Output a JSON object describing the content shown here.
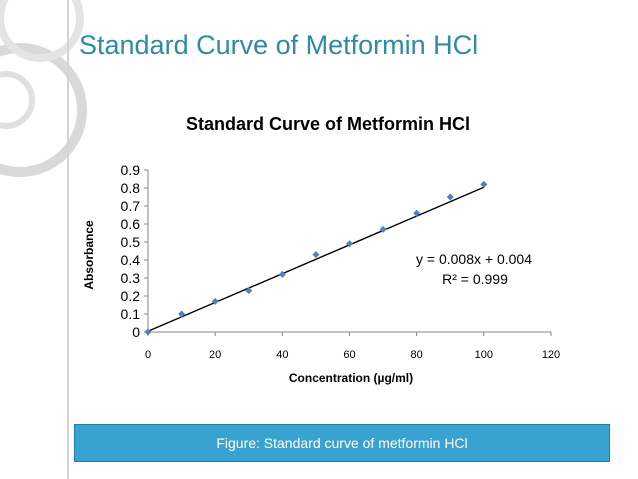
{
  "slide": {
    "title": "Standard Curve of Metformin HCl",
    "caption": "Figure: Standard curve of metformin HCl"
  },
  "colors": {
    "title": "#2f8aa8",
    "caption_bg": "#38a2d0",
    "marker": "#4f81bd",
    "trendline": "#000000"
  },
  "chart_data": {
    "type": "scatter",
    "title": "Standard Curve of Metformin HCl",
    "xlabel": "Concentration (µg/ml)",
    "ylabel": "Absorbance",
    "xlim": [
      0,
      120
    ],
    "ylim": [
      0,
      0.9
    ],
    "x_ticks": [
      "0",
      "20",
      "40",
      "60",
      "80",
      "100",
      "120"
    ],
    "y_ticks": [
      "0",
      "0.1",
      "0.2",
      "0.3",
      "0.4",
      "0.5",
      "0.6",
      "0.7",
      "0.8",
      "0.9"
    ],
    "series": [
      {
        "name": "Absorbance",
        "x": [
          0,
          10,
          20,
          30,
          40,
          50,
          60,
          70,
          80,
          90,
          100
        ],
        "y": [
          0.0,
          0.1,
          0.17,
          0.23,
          0.32,
          0.43,
          0.49,
          0.57,
          0.66,
          0.75,
          0.82
        ]
      }
    ],
    "trendline": {
      "slope": 0.008,
      "intercept": 0.004
    },
    "annotations": {
      "equation": "y = 0.008x + 0.004",
      "r_squared": "R² = 0.999"
    }
  }
}
